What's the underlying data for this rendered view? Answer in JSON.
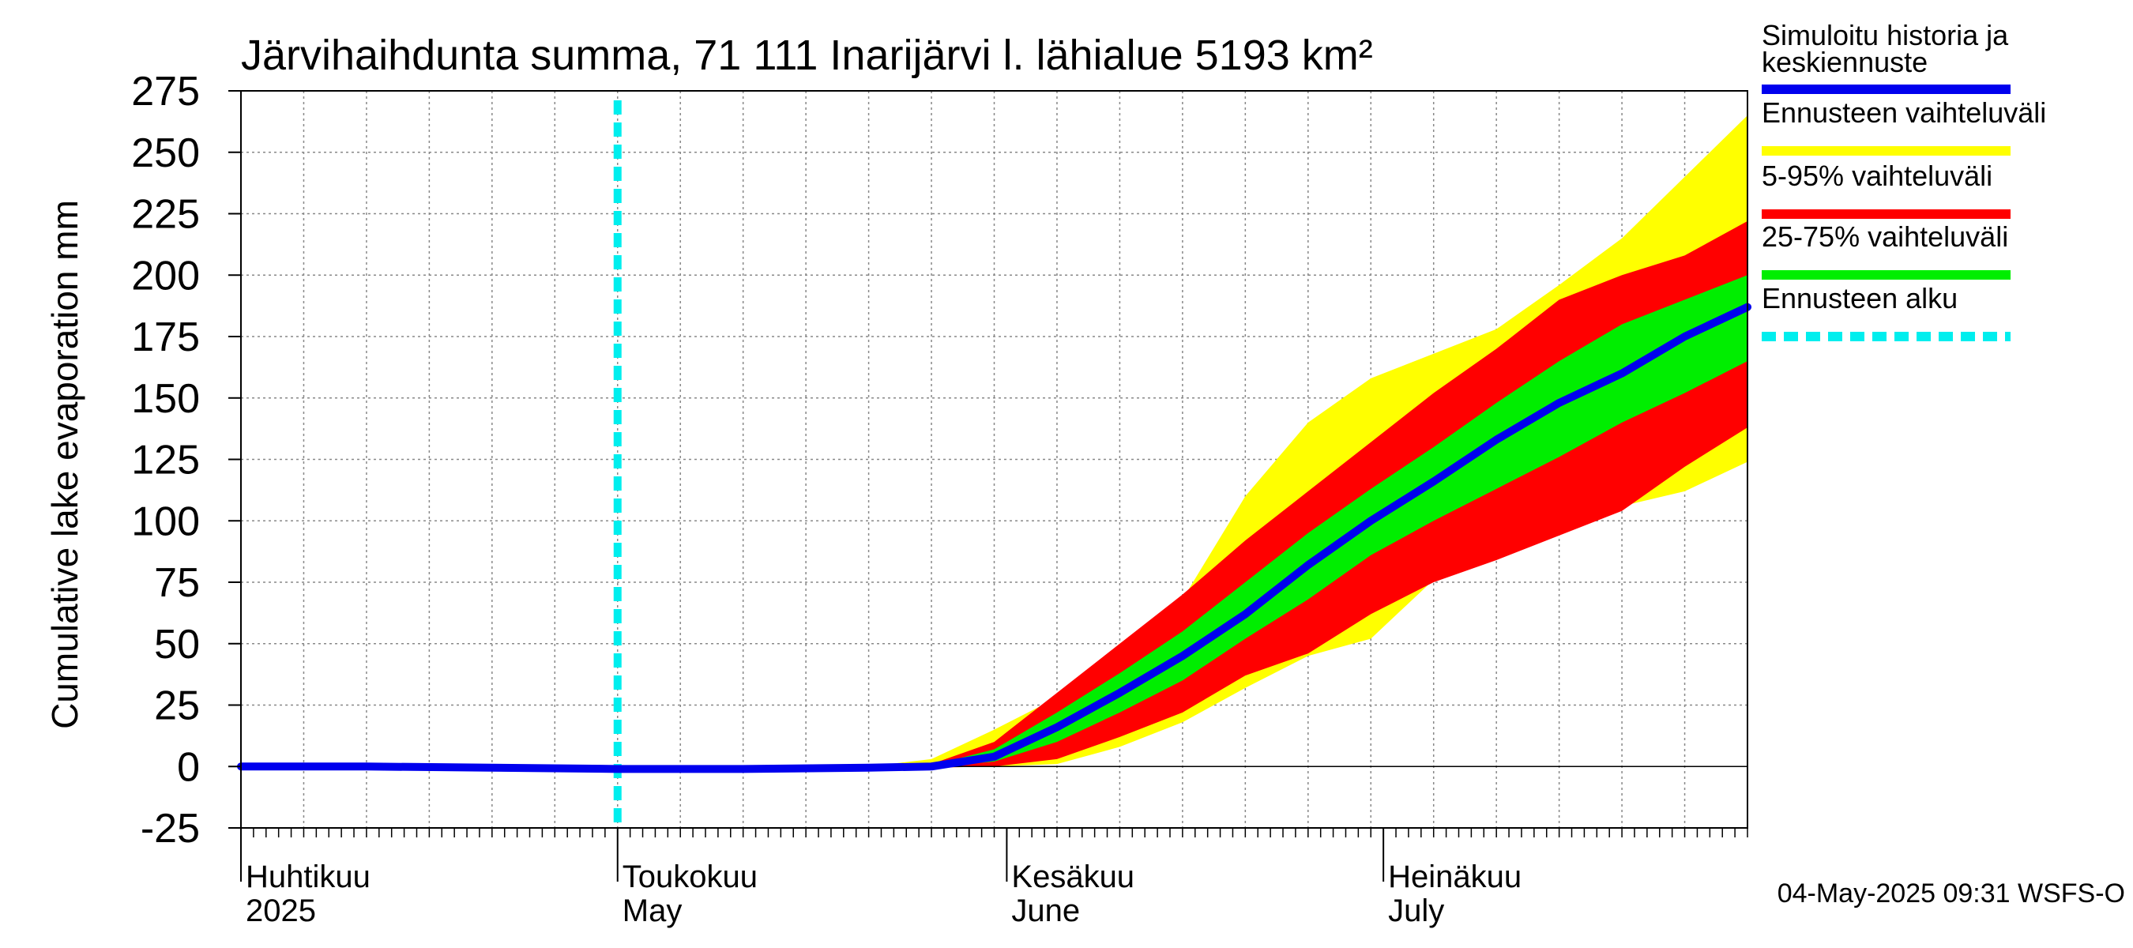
{
  "chart_data": {
    "type": "area",
    "title": "Järvihaihdunta summa, 71 111 Inarijärvi l. lähialue 5193 km²",
    "ylabel": "Cumulative lake evaporation   mm",
    "ylim": [
      -25,
      275
    ],
    "yticks": [
      -25,
      0,
      25,
      50,
      75,
      100,
      125,
      150,
      175,
      200,
      225,
      250,
      275
    ],
    "xlim_days": [
      0,
      120
    ],
    "x_unit": "days since 2025-03-31",
    "month_labels": [
      {
        "day": 1,
        "fi": "Huhtikuu",
        "en": "2025"
      },
      {
        "day": 31,
        "fi": "Toukokuu",
        "en": "May"
      },
      {
        "day": 62,
        "fi": "Kesäkuu",
        "en": "June"
      },
      {
        "day": 92,
        "fi": "Heinäkuu",
        "en": "July"
      }
    ],
    "forecast_start_day": 30,
    "x": [
      0,
      10,
      20,
      30,
      40,
      50,
      55,
      60,
      65,
      70,
      75,
      80,
      85,
      90,
      95,
      100,
      105,
      110,
      115,
      120
    ],
    "series": [
      {
        "name": "Simuloitu historia ja keskiennuste",
        "color": "#0000ee",
        "values": [
          0,
          0,
          -0.5,
          -1,
          -1,
          -0.5,
          0,
          4,
          16,
          30,
          45,
          62,
          82,
          100,
          116,
          133,
          148,
          160,
          175,
          187
        ]
      },
      {
        "name": "Ennusteen vaihteluväli (max)",
        "color": "#ffff00",
        "values": [
          0,
          0,
          -0.5,
          -1,
          -1,
          0,
          3,
          15,
          28,
          50,
          68,
          110,
          140,
          158,
          168,
          178,
          196,
          215,
          240,
          265
        ]
      },
      {
        "name": "Ennusteen vaihteluväli (min)",
        "color": "#ffff00",
        "values": [
          0,
          0,
          -0.5,
          -1,
          -1,
          -0.5,
          -0.5,
          0,
          1,
          8,
          18,
          32,
          45,
          52,
          76,
          86,
          96,
          106,
          112,
          124
        ]
      },
      {
        "name": "5-95% vaihteluväli (max)",
        "color": "#ff0000",
        "values": [
          0,
          0,
          -0.5,
          -1,
          -1,
          -0.3,
          1,
          10,
          30,
          50,
          70,
          92,
          112,
          132,
          152,
          170,
          190,
          200,
          208,
          222
        ]
      },
      {
        "name": "5-95% vaihteluväli (min)",
        "color": "#ff0000",
        "values": [
          0,
          0,
          -0.5,
          -1,
          -1,
          -0.5,
          -0.5,
          0,
          3,
          12,
          22,
          37,
          46,
          62,
          75,
          84,
          94,
          104,
          122,
          138
        ]
      },
      {
        "name": "25-75% vaihteluväli (max)",
        "color": "#00ee00",
        "values": [
          0,
          0,
          -0.5,
          -1,
          -1,
          -0.4,
          0.5,
          7,
          22,
          38,
          55,
          75,
          95,
          113,
          130,
          148,
          165,
          180,
          190,
          200
        ]
      },
      {
        "name": "25-75% vaihteluväli (min)",
        "color": "#00ee00",
        "values": [
          0,
          0,
          -0.5,
          -1,
          -1,
          -0.5,
          -0.3,
          2,
          10,
          22,
          35,
          52,
          68,
          86,
          100,
          113,
          126,
          140,
          152,
          165
        ]
      }
    ],
    "legend": [
      {
        "label_line1": "Simuloitu historia ja",
        "label_line2": "keskiennuste",
        "color": "#0000ee",
        "style": "solid"
      },
      {
        "label_line1": "Ennusteen vaihteluväli",
        "label_line2": "",
        "color": "#ffff00",
        "style": "solid"
      },
      {
        "label_line1": "5-95% vaihteluväli",
        "label_line2": "",
        "color": "#ff0000",
        "style": "solid"
      },
      {
        "label_line1": "25-75% vaihteluväli",
        "label_line2": "",
        "color": "#00ee00",
        "style": "solid"
      },
      {
        "label_line1": "Ennusteen alku",
        "label_line2": "",
        "color": "#00eeee",
        "style": "dashed"
      }
    ],
    "footer": "04-May-2025 09:31 WSFS-O"
  }
}
